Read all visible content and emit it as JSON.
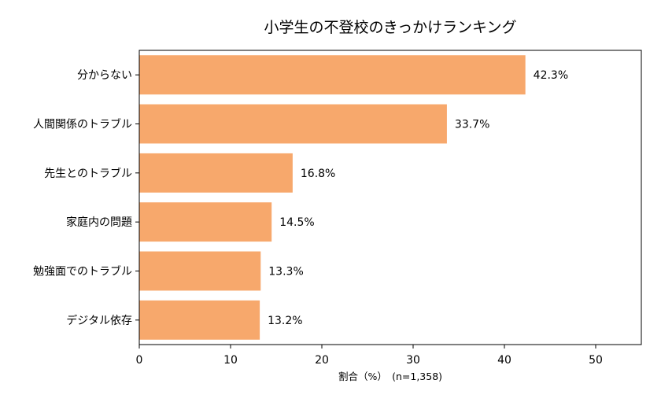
{
  "chart_data": {
    "type": "bar",
    "orientation": "horizontal",
    "title": "小学生の不登校のきっかけランキング",
    "xlabel": "割合（%）　(n=1,358)",
    "ylabel": "",
    "categories": [
      "分からない",
      "人間関係のトラブル",
      "先生とのトラブル",
      "家庭内の問題",
      "勉強面でのトラブル",
      "デジタル依存"
    ],
    "values": [
      42.3,
      33.7,
      16.8,
      14.5,
      13.3,
      13.2
    ],
    "value_labels": [
      "42.3%",
      "33.7%",
      "16.8%",
      "14.5%",
      "13.3%",
      "13.2%"
    ],
    "xlim": [
      0,
      55
    ],
    "xticks": [
      0,
      10,
      20,
      30,
      40,
      50
    ],
    "bar_color": "#f7a86c",
    "grid": false,
    "legend": "none"
  }
}
